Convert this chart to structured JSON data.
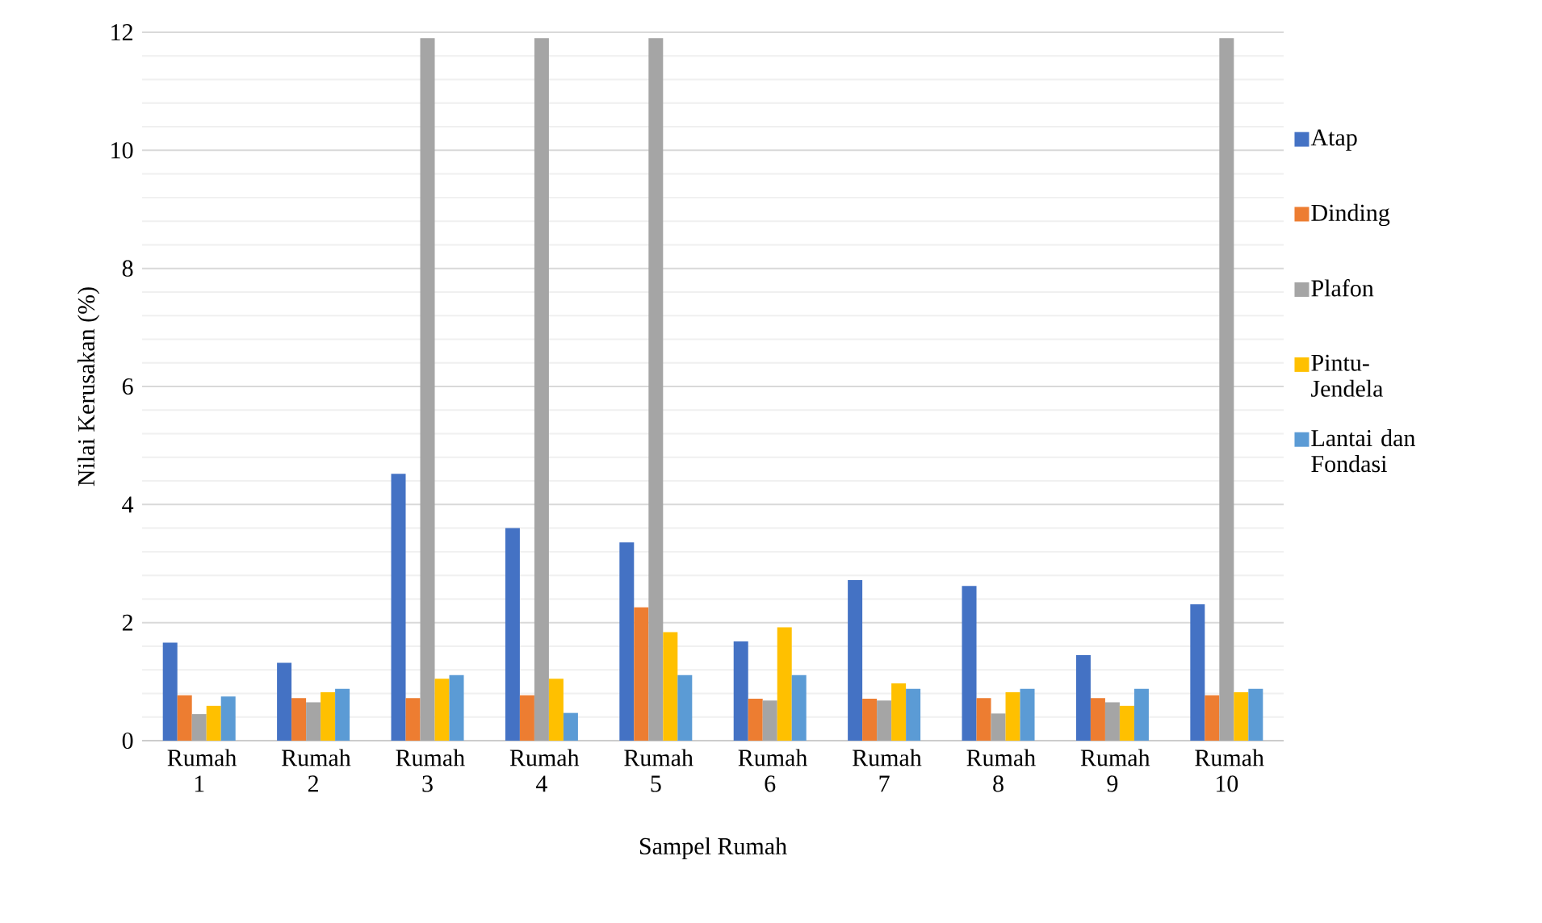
{
  "chart_data": {
    "type": "bar",
    "xlabel": "Sampel Rumah",
    "ylabel": "Nilai Kerusakan (%)",
    "categories": [
      "Rumah 1",
      "Rumah 2",
      "Rumah 3",
      "Rumah 4",
      "Rumah 5",
      "Rumah 6",
      "Rumah 7",
      "Rumah 8",
      "Rumah 9",
      "Rumah 10"
    ],
    "series": [
      {
        "name": "Atap",
        "color": "#4472c4",
        "values": [
          1.66,
          1.32,
          4.52,
          3.6,
          3.36,
          1.68,
          2.72,
          2.62,
          1.45,
          2.31
        ]
      },
      {
        "name": "Dinding",
        "color": "#ed7d31",
        "values": [
          0.77,
          0.72,
          0.72,
          0.77,
          2.26,
          0.71,
          0.71,
          0.72,
          0.72,
          0.77
        ]
      },
      {
        "name": "Plafon",
        "color": "#a5a5a5",
        "values": [
          0.45,
          0.65,
          11.9,
          11.9,
          11.9,
          0.68,
          0.68,
          0.46,
          0.65,
          11.9
        ]
      },
      {
        "name": "Pintu-Jendela",
        "color": "#ffc000",
        "values": [
          0.59,
          0.82,
          1.05,
          1.05,
          1.84,
          1.92,
          0.97,
          0.82,
          0.59,
          0.82
        ]
      },
      {
        "name": "Lantai dan Fondasi",
        "color": "#5b9bd5",
        "values": [
          0.75,
          0.88,
          1.11,
          0.47,
          1.11,
          1.11,
          0.88,
          0.88,
          0.88,
          0.88
        ]
      }
    ],
    "ylim": [
      0,
      12
    ],
    "yticks": [
      0,
      {
        "value": 0.4,
        "label": null
      },
      {
        "value": 0.8,
        "label": null
      },
      {
        "value": 1.2,
        "label": null
      },
      {
        "value": 1.6,
        "label": null
      },
      2,
      {
        "value": 2.4,
        "label": null
      },
      {
        "value": 2.8,
        "label": null
      },
      {
        "value": 3.2,
        "label": null
      },
      {
        "value": 3.6,
        "label": null
      },
      4,
      {
        "value": 4.4,
        "label": null
      },
      {
        "value": 4.8,
        "label": null
      },
      {
        "value": 5.2,
        "label": null
      },
      {
        "value": 5.6,
        "label": null
      },
      6,
      {
        "value": 6.4,
        "label": null
      },
      {
        "value": 6.8,
        "label": null
      },
      {
        "value": 7.2,
        "label": null
      },
      {
        "value": 7.6,
        "label": null
      },
      8,
      {
        "value": 8.4,
        "label": null
      },
      {
        "value": 8.8,
        "label": null
      },
      {
        "value": 9.2,
        "label": null
      },
      {
        "value": 9.6,
        "label": null
      },
      10,
      {
        "value": 10.4,
        "label": null
      },
      {
        "value": 10.8,
        "label": null
      },
      {
        "value": 11.2,
        "label": null
      },
      {
        "value": 11.6,
        "label": null
      },
      12
    ],
    "grid": "y",
    "legend": "right"
  }
}
